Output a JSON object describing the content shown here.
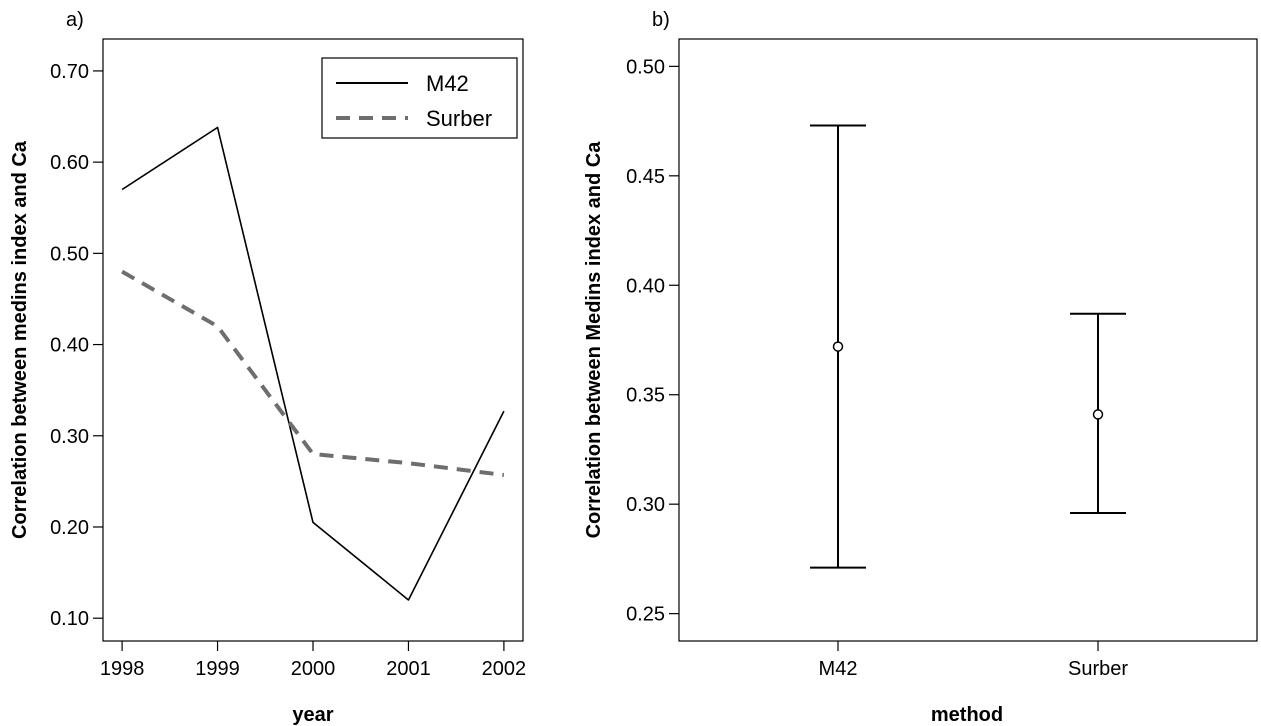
{
  "chart_data": [
    {
      "type": "line",
      "panel_label": "a)",
      "xlabel": "year",
      "ylabel": "Correlation between medins index and Ca",
      "x": [
        1998,
        1999,
        2000,
        2001,
        2002
      ],
      "xlim": [
        1997.8,
        2002.2
      ],
      "ylim": [
        0.075,
        0.735
      ],
      "yticks": [
        "0.10",
        "0.20",
        "0.30",
        "0.40",
        "0.50",
        "0.60",
        "0.70"
      ],
      "xticks": [
        "1998",
        "1999",
        "2000",
        "2001",
        "2002"
      ],
      "series": [
        {
          "name": "M42",
          "values": [
            0.57,
            0.638,
            0.205,
            0.12,
            0.327
          ],
          "style": "solid",
          "color": "#000000"
        },
        {
          "name": "Surber",
          "values": [
            0.48,
            0.42,
            0.28,
            0.27,
            0.257
          ],
          "style": "dashed",
          "color": "#6e6e6e"
        }
      ],
      "legend": "top-right"
    },
    {
      "type": "errorbar",
      "panel_label": "b)",
      "xlabel": "method",
      "ylabel": "Correlation between Medins index and Ca",
      "categories": [
        "M42",
        "Surber"
      ],
      "means": [
        0.372,
        0.341
      ],
      "lower": [
        0.271,
        0.296
      ],
      "upper": [
        0.473,
        0.387
      ],
      "ylim": [
        0.2375,
        0.5125
      ],
      "yticks": [
        "0.25",
        "0.30",
        "0.35",
        "0.40",
        "0.45",
        "0.50"
      ]
    }
  ]
}
